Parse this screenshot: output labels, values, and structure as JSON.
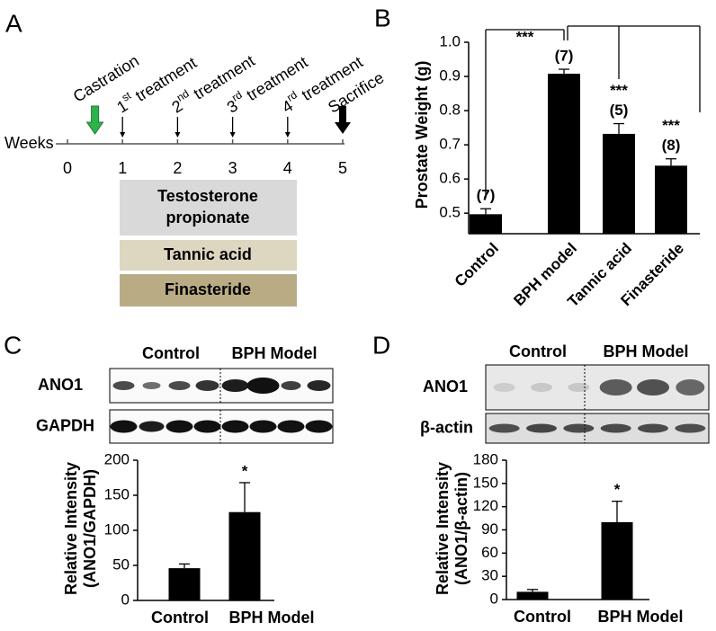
{
  "panel_labels": [
    "A",
    "B",
    "C",
    "D"
  ],
  "timeline": {
    "axis_label": "Weeks",
    "ticks": [
      0,
      1,
      2,
      3,
      4,
      5
    ],
    "events": [
      {
        "label": "Castration",
        "week": 0.5
      },
      {
        "number": "1",
        "suffix": "st",
        "label": "treatment",
        "week": 1
      },
      {
        "number": "2",
        "suffix": "nd",
        "label": "treatment",
        "week": 2
      },
      {
        "number": "3",
        "suffix": "rd",
        "label": "treatment",
        "week": 3
      },
      {
        "number": "4",
        "suffix": "rd",
        "label": "treatment",
        "week": 4
      },
      {
        "label": "Sacrifice",
        "week": 5
      }
    ],
    "treatments": [
      [
        "Testosterone",
        "propionate"
      ],
      [
        "Tannic acid"
      ],
      [
        "Finasteride"
      ]
    ]
  },
  "blots": [
    {
      "groups": [
        "Control",
        "BPH Model"
      ],
      "rows": [
        "ANO1",
        "GAPDH"
      ]
    },
    {
      "groups": [
        "Control",
        "BPH Model"
      ],
      "rows": [
        "ANO1",
        "β-actin"
      ]
    }
  ],
  "chart_data": [
    {
      "type": "bar",
      "ylabel": "Prostate Weight (g)",
      "categories": [
        "Control",
        "BPH model",
        "Tannic acid",
        "Finasteride"
      ],
      "series": [
        {
          "color": "#000000",
          "values": [
            0.497,
            0.908,
            0.732,
            0.639
          ],
          "errors": [
            0.016,
            0.013,
            0.03,
            0.02
          ]
        }
      ],
      "ylim": [
        0.44,
        1.0
      ],
      "yticks": [
        0.5,
        0.6,
        0.7,
        0.8,
        0.9,
        {
          "value": 1,
          "label": "1.0"
        }
      ],
      "n_labels": [
        "(7)",
        "(7)",
        "(5)",
        "(8)"
      ],
      "significance": [
        "***",
        null,
        "***",
        "***"
      ]
    },
    {
      "type": "bar",
      "ylabel": [
        "Relative Intensity",
        "(ANO1/GAPDH)"
      ],
      "categories": [
        "Control",
        "BPH Model"
      ],
      "series": [
        {
          "color": "#000000",
          "values": [
            46,
            126
          ],
          "errors": [
            6,
            42
          ]
        }
      ],
      "ylim": [
        0,
        200
      ],
      "yticks": [
        0,
        50,
        100,
        150,
        200
      ],
      "significance": [
        null,
        "*"
      ]
    },
    {
      "type": "bar",
      "ylabel": [
        "Relative Intensity",
        "(ANO1/β-actin)"
      ],
      "categories": [
        "Control",
        "BPH Model"
      ],
      "series": [
        {
          "color": "#000000",
          "values": [
            10,
            100
          ],
          "errors": [
            3,
            27
          ]
        }
      ],
      "ylim": [
        0,
        180
      ],
      "yticks": [
        0,
        30,
        60,
        90,
        120,
        150,
        180
      ],
      "significance": [
        null,
        "*"
      ]
    }
  ]
}
